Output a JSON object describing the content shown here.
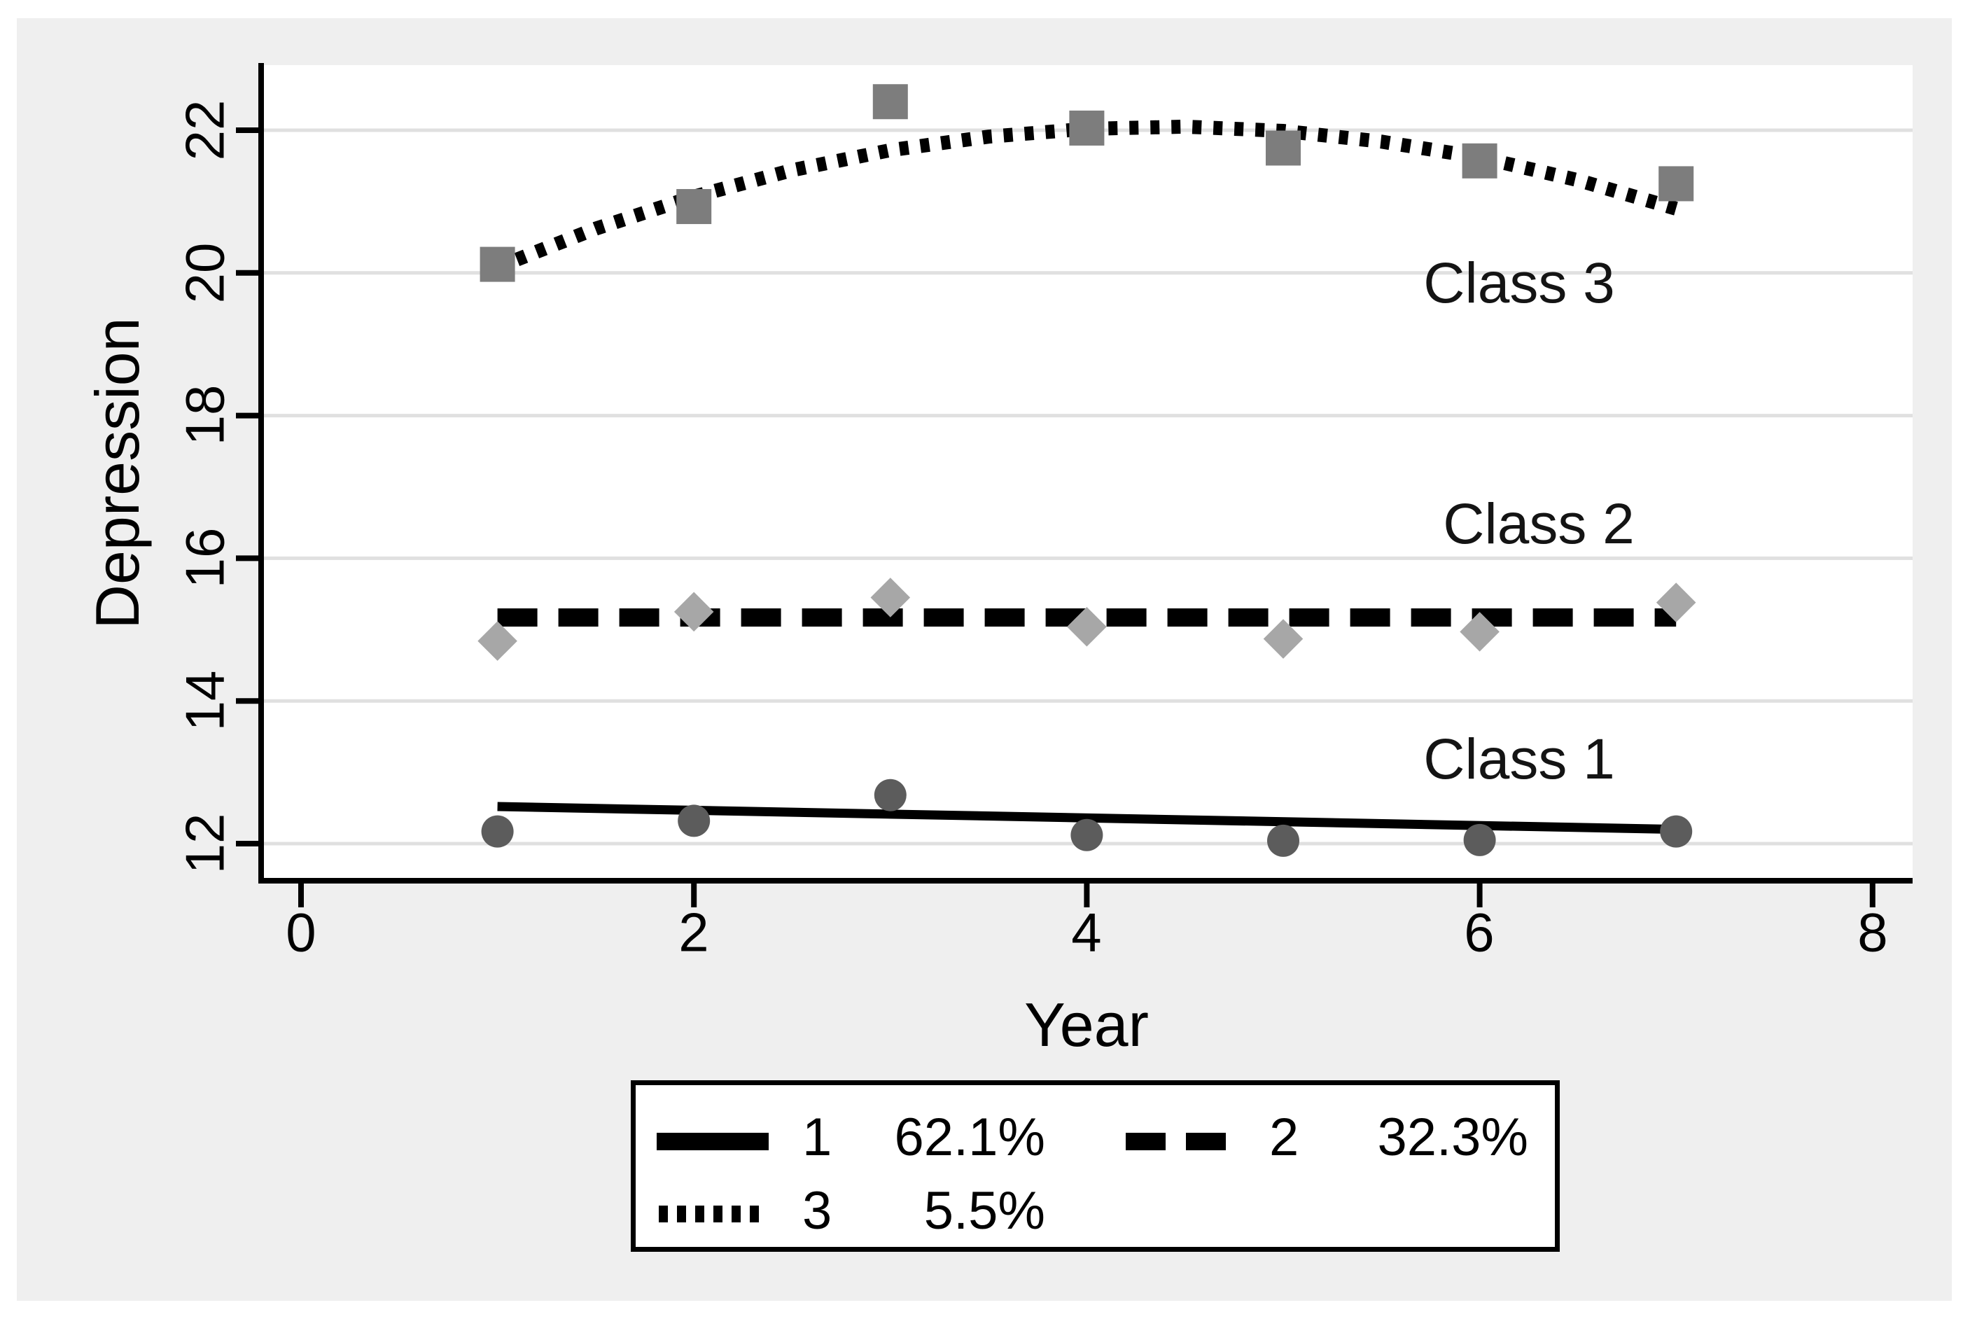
{
  "figure": {
    "background": "#efefef",
    "plot_background": "#ffffff",
    "gridline_color": "#e0e0e0",
    "axis_color": "#000000",
    "text_color": "#000000"
  },
  "chart_data": {
    "type": "line",
    "title": "",
    "xlabel": "Year",
    "ylabel": "Depression",
    "x_ticks": [
      "0",
      "2",
      "4",
      "6",
      "8"
    ],
    "y_ticks": [
      "12",
      "14",
      "16",
      "18",
      "20",
      "22"
    ],
    "xlim": [
      -0.2,
      8.35
    ],
    "ylim": [
      11.45,
      22.9
    ],
    "grid": "horizontal-gridlines-only",
    "legend_position": "below-plot",
    "x": [
      1,
      2,
      3,
      4,
      5,
      6,
      7
    ],
    "series": [
      {
        "name": "Class 1",
        "legend_label": "1",
        "percent": "62.1%",
        "marker": "circle",
        "marker_color": "#5c5c5c",
        "line_style": "solid",
        "line_color": "#000000",
        "marker_values": [
          12.17,
          12.32,
          12.68,
          12.12,
          12.04,
          12.05,
          12.17
        ],
        "fit_x": [
          1,
          7
        ],
        "fit_y": [
          12.52,
          12.2
        ]
      },
      {
        "name": "Class 2",
        "legend_label": "2",
        "percent": "32.3%",
        "marker": "diamond",
        "marker_color": "#a7a7a7",
        "line_style": "dashed",
        "line_color": "#000000",
        "marker_values": [
          14.84,
          15.25,
          15.45,
          15.04,
          14.87,
          14.97,
          15.38
        ],
        "fit_x": [
          1,
          7
        ],
        "fit_y": [
          15.17,
          15.17
        ]
      },
      {
        "name": "Class 3",
        "legend_label": "3",
        "percent": "5.5%",
        "marker": "square",
        "marker_color": "#7d7d7d",
        "line_style": "dotted",
        "line_color": "#000000",
        "marker_values": [
          20.12,
          20.93,
          22.4,
          22.03,
          21.75,
          21.57,
          21.25
        ],
        "fit_x": [
          1,
          1.5,
          2,
          2.5,
          3,
          3.5,
          4,
          4.5,
          5,
          5.5,
          6,
          6.5,
          7
        ],
        "fit_y": [
          20.08,
          20.62,
          21.07,
          21.44,
          21.72,
          21.91,
          22.02,
          22.05,
          21.99,
          21.84,
          21.62,
          21.3,
          20.9
        ]
      }
    ],
    "annotations": [
      {
        "text": "Class 3",
        "x": 6.2,
        "y": 19.85
      },
      {
        "text": "Class 2",
        "x": 6.3,
        "y": 16.47
      },
      {
        "text": "Class 1",
        "x": 6.2,
        "y": 13.18
      }
    ],
    "legend": {
      "entries": [
        {
          "label": "1",
          "percent": "62.1%",
          "line_style": "solid"
        },
        {
          "label": "2",
          "percent": "32.3%",
          "line_style": "dashed"
        },
        {
          "label": "3",
          "percent": "5.5%",
          "line_style": "dotted"
        }
      ]
    }
  }
}
